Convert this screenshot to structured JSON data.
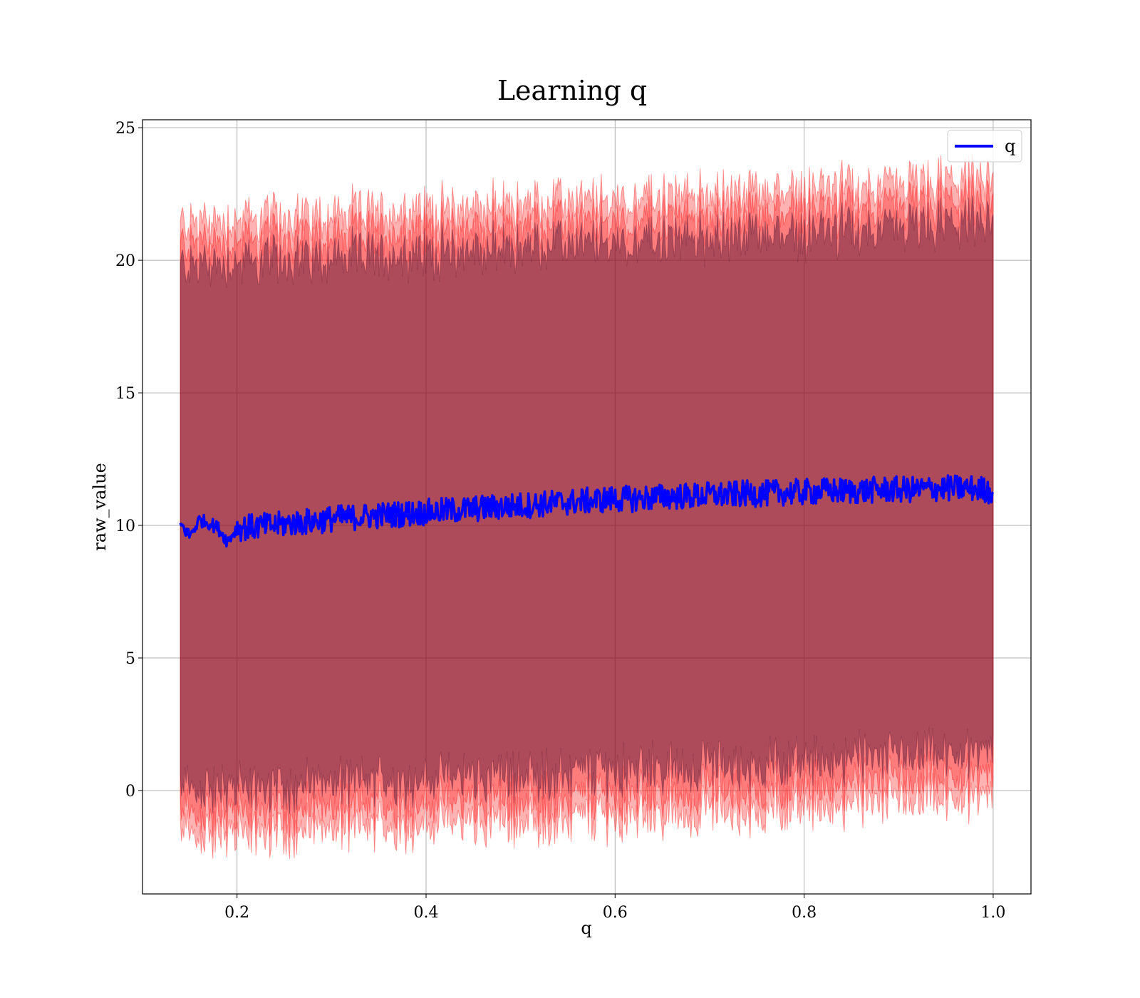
{
  "chart_data": {
    "type": "line",
    "title": "Learning q",
    "xlabel": "q",
    "ylabel": "raw_value",
    "xlim": [
      0.1,
      1.04
    ],
    "ylim": [
      -3.9,
      25.3
    ],
    "xticks": [
      0.2,
      0.4,
      0.6,
      0.8,
      1.0
    ],
    "xtick_labels": [
      "0.2",
      "0.4",
      "0.6",
      "0.8",
      "1.0"
    ],
    "yticks": [
      0,
      5,
      10,
      15,
      20,
      25
    ],
    "ytick_labels": [
      "0",
      "5",
      "10",
      "15",
      "20",
      "25"
    ],
    "grid": true,
    "legend": {
      "position": "top-right",
      "entries": [
        "q"
      ]
    },
    "x_range": [
      0.14,
      1.0
    ],
    "series": [
      {
        "name": "q",
        "color": "#0000ff",
        "x": [
          0.14,
          0.15,
          0.16,
          0.17,
          0.18,
          0.19,
          0.2,
          0.22,
          0.24,
          0.26,
          0.28,
          0.3,
          0.32,
          0.34,
          0.36,
          0.38,
          0.4,
          0.42,
          0.44,
          0.46,
          0.48,
          0.5,
          0.52,
          0.54,
          0.56,
          0.58,
          0.6,
          0.62,
          0.64,
          0.66,
          0.68,
          0.7,
          0.72,
          0.74,
          0.76,
          0.78,
          0.8,
          0.82,
          0.84,
          0.86,
          0.88,
          0.9,
          0.92,
          0.94,
          0.96,
          0.98,
          1.0
        ],
        "y": [
          10.05,
          9.6,
          10.2,
          10.1,
          9.9,
          9.4,
          9.9,
          9.95,
          10.0,
          10.1,
          10.15,
          10.25,
          10.3,
          10.35,
          10.4,
          10.45,
          10.5,
          10.55,
          10.6,
          10.65,
          10.7,
          10.75,
          10.8,
          10.85,
          10.9,
          10.95,
          11.0,
          11.0,
          11.05,
          11.1,
          11.1,
          11.15,
          11.15,
          11.2,
          11.2,
          11.25,
          11.25,
          11.3,
          11.3,
          11.3,
          11.35,
          11.35,
          11.35,
          11.4,
          11.4,
          11.4,
          11.3
        ]
      }
    ],
    "bands": [
      {
        "label": "outer band",
        "color": "#ff0000",
        "opacity": 0.3,
        "upper_start": 21.4,
        "upper_end": 23.0,
        "lower_start": -1.7,
        "lower_end": -0.3
      },
      {
        "label": "middle band",
        "color": "#ff0000",
        "opacity": 0.3,
        "upper_start": 20.6,
        "upper_end": 22.2,
        "lower_start": -0.9,
        "lower_end": 0.5
      },
      {
        "label": "inner band",
        "color": "#4b1030",
        "opacity": 0.45,
        "upper_start": 19.8,
        "upper_end": 21.4,
        "lower_start": 0.0,
        "lower_end": 1.4
      }
    ]
  }
}
